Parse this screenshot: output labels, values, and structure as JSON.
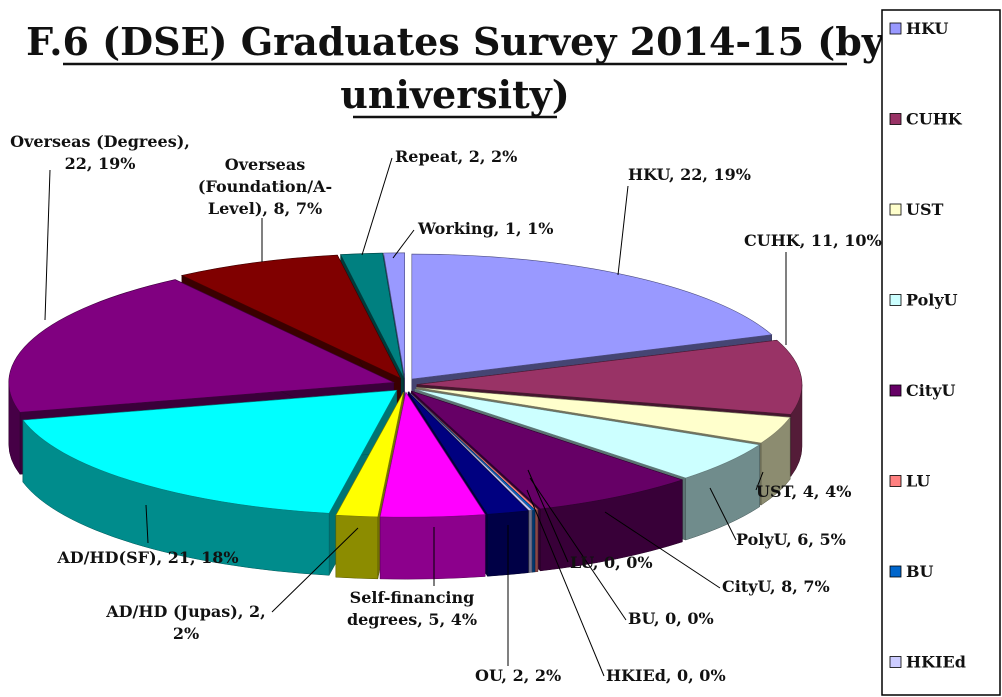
{
  "colors": {
    "background": "#ffffff",
    "text": "#111111",
    "leader": "#000000"
  },
  "chart_data": {
    "type": "pie",
    "style": "3d-exploded",
    "title": "F.6 (DSE) Graduates Survey 2014-15 (by university)",
    "title_lines": [
      "F.6 (DSE) Graduates Survey 2014-15 (by",
      "university)"
    ],
    "slices": [
      {
        "name": "HKU",
        "value": 22,
        "percent": "19%",
        "label": "HKU, 22, 19%",
        "color": "#9999ff"
      },
      {
        "name": "CUHK",
        "value": 11,
        "percent": "10%",
        "label": "CUHK, 11, 10%",
        "color": "#993366"
      },
      {
        "name": "UST",
        "value": 4,
        "percent": "4%",
        "label": "UST, 4, 4%",
        "color": "#ffffcc"
      },
      {
        "name": "PolyU",
        "value": 6,
        "percent": "5%",
        "label": "PolyU, 6, 5%",
        "color": "#ccffff"
      },
      {
        "name": "CityU",
        "value": 8,
        "percent": "7%",
        "label": "CityU, 8, 7%",
        "color": "#660066"
      },
      {
        "name": "LU",
        "value": 0,
        "percent": "0%",
        "label": "LU, 0, 0%",
        "color": "#ff8080"
      },
      {
        "name": "BU",
        "value": 0,
        "percent": "0%",
        "label": "BU, 0, 0%",
        "color": "#0066cc"
      },
      {
        "name": "HKIEd",
        "value": 0,
        "percent": "0%",
        "label": "HKIEd, 0, 0%",
        "color": "#ccccff"
      },
      {
        "name": "OU",
        "value": 2,
        "percent": "2%",
        "label": "OU, 2, 2%",
        "color": "#000080"
      },
      {
        "name": "Self-financing degrees",
        "value": 5,
        "percent": "4%",
        "label": "Self-financing degrees, 5, 4%",
        "color": "#ff00ff"
      },
      {
        "name": "AD/HD (Jupas)",
        "value": 2,
        "percent": "2%",
        "label": "AD/HD (Jupas), 2, 2%",
        "color": "#ffff00"
      },
      {
        "name": "AD/HD(SF)",
        "value": 21,
        "percent": "18%",
        "label": "AD/HD(SF), 21, 18%",
        "color": "#00ffff"
      },
      {
        "name": "Overseas (Degrees)",
        "value": 22,
        "percent": "19%",
        "label": "Overseas (Degrees), 22, 19%",
        "color": "#800080"
      },
      {
        "name": "Overseas (Foundation/A-Level)",
        "value": 8,
        "percent": "7%",
        "label": "Overseas (Foundation/A-Level), 8, 7%",
        "color": "#800000"
      },
      {
        "name": "Repeat",
        "value": 2,
        "percent": "2%",
        "label": "Repeat, 2, 2%",
        "color": "#008080"
      },
      {
        "name": "Working",
        "value": 1,
        "percent": "1%",
        "label": "Working, 1, 1%",
        "color": "#9999ff"
      }
    ],
    "legend": {
      "placement": "right",
      "entries": [
        "HKU",
        "CUHK",
        "UST",
        "PolyU",
        "CityU",
        "LU",
        "BU",
        "HKIEd"
      ]
    }
  }
}
